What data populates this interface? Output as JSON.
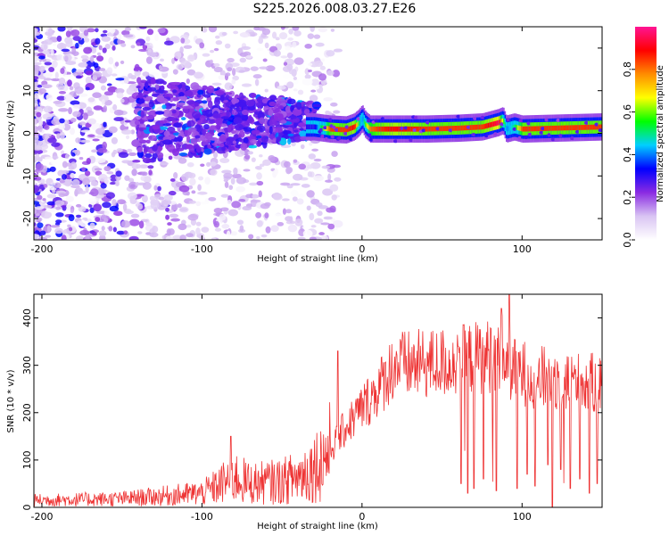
{
  "title": "S225.2026.008.03.27.E26",
  "chart_data": [
    {
      "type": "heatmap",
      "name": "spectrogram",
      "xlabel": "Height of straight line (km)",
      "ylabel": "Frequency (Hz)",
      "xlim": [
        -205,
        150
      ],
      "ylim": [
        -25,
        25
      ],
      "xticks": [
        -200,
        -100,
        0,
        100
      ],
      "xtick_labels": [
        "-200",
        "-100",
        "0",
        "100"
      ],
      "yticks": [
        -20,
        -10,
        0,
        10,
        20
      ],
      "ytick_labels": [
        "-20",
        "-10",
        "0",
        "10",
        "20"
      ],
      "colorbar": {
        "label": "Normalized spectral amplitude",
        "range": [
          0,
          1
        ],
        "ticks": [
          0.0,
          0.2,
          0.4,
          0.6,
          0.8
        ],
        "tick_labels": [
          "0.0",
          "0.2",
          "0.4",
          "0.6",
          "0.8"
        ],
        "colors": [
          "#ffffff",
          "#d9c4f3",
          "#8a2be2",
          "#0000ff",
          "#00cfff",
          "#00ff00",
          "#ffff00",
          "#ff8c00",
          "#ff0000",
          "#ff1493"
        ]
      },
      "ridge": {
        "x": [
          -30,
          -20,
          -10,
          -5,
          -2,
          0,
          2,
          5,
          10,
          20,
          40,
          60,
          75,
          80,
          85,
          88,
          90,
          95,
          100,
          120,
          150
        ],
        "freq": [
          1.5,
          1,
          0.8,
          1.5,
          2.5,
          3.5,
          2,
          1,
          1,
          1,
          1,
          1.2,
          1.5,
          2,
          2.5,
          3,
          1,
          1.5,
          1,
          1.2,
          1.5
        ],
        "amplitude": [
          0.3,
          0.85,
          0.85,
          0.9,
          0.5,
          0.4,
          0.6,
          0.8,
          0.85,
          0.9,
          0.85,
          0.85,
          0.85,
          0.9,
          0.95,
          0.6,
          0.4,
          0.5,
          0.85,
          0.85,
          0.85
        ]
      }
    },
    {
      "type": "line",
      "name": "snr",
      "xlabel": "Height of straight line (km)",
      "ylabel": "SNR (10 * v/v)",
      "xlim": [
        -205,
        150
      ],
      "ylim": [
        0,
        450
      ],
      "xticks": [
        -200,
        -100,
        0,
        100
      ],
      "xtick_labels": [
        "-200",
        "-100",
        "0",
        "100"
      ],
      "yticks": [
        0,
        100,
        200,
        300,
        400
      ],
      "ytick_labels": [
        "0",
        "100",
        "200",
        "300",
        "400"
      ],
      "color": "#ee3333",
      "envelope": {
        "x": [
          -205,
          -150,
          -120,
          -100,
          -90,
          -80,
          -70,
          -50,
          -40,
          -30,
          -20,
          -10,
          0,
          10,
          20,
          30,
          50,
          70,
          80,
          88,
          90,
          95,
          100,
          110,
          130,
          150
        ],
        "snr": [
          15,
          18,
          25,
          30,
          45,
          65,
          50,
          55,
          65,
          85,
          120,
          170,
          210,
          250,
          300,
          300,
          305,
          315,
          320,
          330,
          300,
          295,
          285,
          275,
          265,
          260
        ]
      },
      "spikes": [
        {
          "x": 92,
          "snr": 450
        },
        {
          "x": 87,
          "snr": 420
        },
        {
          "x": -15,
          "snr": 330
        },
        {
          "x": -82,
          "snr": 150
        },
        {
          "x": 60,
          "snr": 340
        }
      ],
      "dropouts": [
        {
          "x": 62,
          "snr": 50
        },
        {
          "x": 66,
          "snr": 30
        },
        {
          "x": 70,
          "snr": 40
        },
        {
          "x": 76,
          "snr": 60
        },
        {
          "x": 84,
          "snr": 35
        },
        {
          "x": 97,
          "snr": 40
        },
        {
          "x": 103,
          "snr": 70
        },
        {
          "x": 108,
          "snr": 45
        },
        {
          "x": 116,
          "snr": 90
        },
        {
          "x": 119,
          "snr": 0
        },
        {
          "x": 124,
          "snr": 80
        },
        {
          "x": 130,
          "snr": 40
        },
        {
          "x": 136,
          "snr": 60
        },
        {
          "x": 142,
          "snr": 30
        },
        {
          "x": 147,
          "snr": 50
        }
      ]
    }
  ]
}
